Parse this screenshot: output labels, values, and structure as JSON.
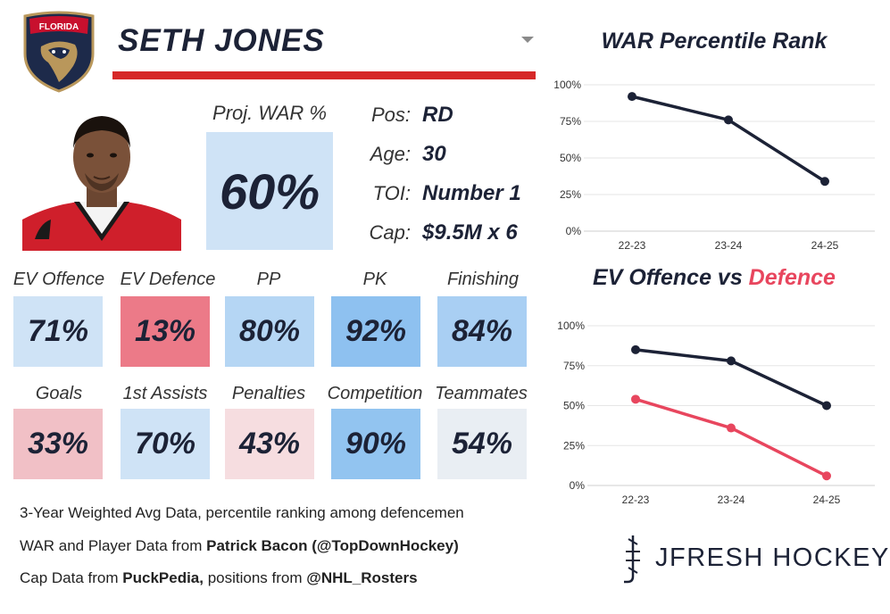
{
  "header": {
    "team_logo": "florida-panthers-logo",
    "team_logo_text": "FLORIDA",
    "player_name": "SETH JONES"
  },
  "projection": {
    "label": "Proj. WAR %",
    "value": "60%"
  },
  "info": [
    {
      "label": "Pos:",
      "value": "RD"
    },
    {
      "label": "Age:",
      "value": "30"
    },
    {
      "label": "TOI:",
      "value": "Number 1"
    },
    {
      "label": "Cap:",
      "value": "$9.5M x 6"
    }
  ],
  "tiles": [
    {
      "label": "EV Offence",
      "value": "71%",
      "color": "#cfe3f6"
    },
    {
      "label": "EV Defence",
      "value": "13%",
      "color": "#ec7a88"
    },
    {
      "label": "PP",
      "value": "80%",
      "color": "#b5d6f4"
    },
    {
      "label": "PK",
      "value": "92%",
      "color": "#8ec1f0"
    },
    {
      "label": "Finishing",
      "value": "84%",
      "color": "#a9cff3"
    },
    {
      "label": "Goals",
      "value": "33%",
      "color": "#f1c0c6"
    },
    {
      "label": "1st Assists",
      "value": "70%",
      "color": "#cfe3f6"
    },
    {
      "label": "Penalties",
      "value": "43%",
      "color": "#f6dde0"
    },
    {
      "label": "Competition",
      "value": "90%",
      "color": "#92c4f0"
    },
    {
      "label": "Teammates",
      "value": "54%",
      "color": "#e9eef3"
    }
  ],
  "footer": {
    "line1": "3-Year Weighted Avg Data, percentile ranking among defencemen",
    "line2_prefix": "WAR and Player Data from ",
    "line2_bold": "Patrick Bacon (@TopDownHockey)",
    "line3_prefix": "Cap Data from ",
    "line3_bold1": "PuckPedia,",
    "line3_mid": " positions from ",
    "line3_bold2": "@NHL_Rosters"
  },
  "brand": {
    "text": "JFRESH HOCKEY",
    "icon": "jfresh-logo-icon"
  },
  "colors": {
    "navy": "#1c2236",
    "red": "#e8465e",
    "banner_red": "#d62828"
  },
  "chart_data": [
    {
      "type": "line",
      "title": "WAR Percentile Rank",
      "categories": [
        "22-23",
        "23-24",
        "24-25"
      ],
      "series": [
        {
          "name": "WAR Percentile",
          "values": [
            92,
            76,
            34
          ],
          "color": "#1c2236"
        }
      ],
      "ylim": [
        0,
        100
      ],
      "yticks": [
        "0%",
        "25%",
        "50%",
        "75%",
        "100%"
      ],
      "xlabel": "",
      "ylabel": "",
      "grid": true
    },
    {
      "type": "line",
      "title_part1": "EV Offence vs ",
      "title_part2": "Defence",
      "categories": [
        "22-23",
        "23-24",
        "24-25"
      ],
      "series": [
        {
          "name": "EV Offence",
          "values": [
            85,
            78,
            50
          ],
          "color": "#1c2236"
        },
        {
          "name": "EV Defence",
          "values": [
            54,
            36,
            6
          ],
          "color": "#e8465e"
        }
      ],
      "ylim": [
        0,
        100
      ],
      "yticks": [
        "0%",
        "25%",
        "50%",
        "75%",
        "100%"
      ],
      "xlabel": "",
      "ylabel": "",
      "grid": true
    }
  ]
}
